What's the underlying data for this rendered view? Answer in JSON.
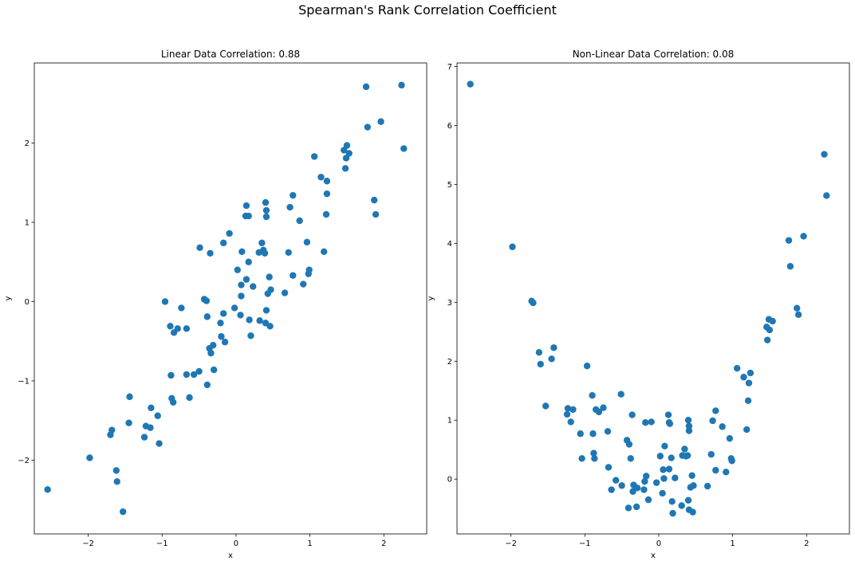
{
  "figure": {
    "suptitle": "Spearman's Rank Correlation Coefficient"
  },
  "chart_data": [
    {
      "type": "scatter",
      "title": "Linear Data Correlation: 0.88",
      "xlabel": "x",
      "ylabel": "y",
      "xlim": [
        -2.73,
        2.58
      ],
      "ylim": [
        -2.93,
        3.01
      ],
      "xticks": [
        -2,
        -1,
        0,
        1,
        2
      ],
      "yticks": [
        -2,
        -1,
        0,
        1,
        2
      ],
      "grid": false,
      "color": "#1f77b4",
      "points": [
        {
          "x": -2.55,
          "y": -2.37
        },
        {
          "x": -1.98,
          "y": -1.97
        },
        {
          "x": -1.7,
          "y": -1.68
        },
        {
          "x": -1.68,
          "y": -1.62
        },
        {
          "x": -1.62,
          "y": -2.13
        },
        {
          "x": -1.61,
          "y": -2.27
        },
        {
          "x": -1.53,
          "y": -2.65
        },
        {
          "x": -1.44,
          "y": -1.2
        },
        {
          "x": -1.45,
          "y": -1.53
        },
        {
          "x": -1.24,
          "y": -1.71
        },
        {
          "x": -1.22,
          "y": -1.57
        },
        {
          "x": -1.16,
          "y": -1.59
        },
        {
          "x": -1.15,
          "y": -1.34
        },
        {
          "x": -1.06,
          "y": -1.44
        },
        {
          "x": -1.04,
          "y": -1.79
        },
        {
          "x": -0.96,
          "y": 0.0
        },
        {
          "x": -0.89,
          "y": -0.31
        },
        {
          "x": -0.88,
          "y": -0.93
        },
        {
          "x": -0.87,
          "y": -1.22
        },
        {
          "x": -0.85,
          "y": -1.27
        },
        {
          "x": -0.84,
          "y": -0.39
        },
        {
          "x": -0.79,
          "y": -0.34
        },
        {
          "x": -0.74,
          "y": -0.08
        },
        {
          "x": -0.67,
          "y": -0.34
        },
        {
          "x": -0.67,
          "y": -0.92
        },
        {
          "x": -0.63,
          "y": -1.21
        },
        {
          "x": -0.57,
          "y": -0.92
        },
        {
          "x": -0.5,
          "y": -0.88
        },
        {
          "x": -0.49,
          "y": 0.68
        },
        {
          "x": -0.43,
          "y": 0.03
        },
        {
          "x": -0.4,
          "y": 0.01
        },
        {
          "x": -0.39,
          "y": -0.19
        },
        {
          "x": -0.39,
          "y": -1.05
        },
        {
          "x": -0.36,
          "y": -0.59
        },
        {
          "x": -0.35,
          "y": 0.61
        },
        {
          "x": -0.34,
          "y": -0.65
        },
        {
          "x": -0.31,
          "y": -0.55
        },
        {
          "x": -0.3,
          "y": -0.86
        },
        {
          "x": -0.21,
          "y": -0.27
        },
        {
          "x": -0.2,
          "y": -0.44
        },
        {
          "x": -0.17,
          "y": -0.15
        },
        {
          "x": -0.17,
          "y": 0.74
        },
        {
          "x": -0.15,
          "y": -0.51
        },
        {
          "x": -0.09,
          "y": 0.86
        },
        {
          "x": -0.02,
          "y": -0.08
        },
        {
          "x": 0.02,
          "y": 0.4
        },
        {
          "x": 0.06,
          "y": -0.17
        },
        {
          "x": 0.07,
          "y": 0.21
        },
        {
          "x": 0.07,
          "y": 0.07
        },
        {
          "x": 0.08,
          "y": 0.63
        },
        {
          "x": 0.13,
          "y": 1.08
        },
        {
          "x": 0.14,
          "y": 1.21
        },
        {
          "x": 0.14,
          "y": 0.28
        },
        {
          "x": 0.17,
          "y": 1.08
        },
        {
          "x": 0.17,
          "y": 0.5
        },
        {
          "x": 0.18,
          "y": -0.23
        },
        {
          "x": 0.2,
          "y": -0.43
        },
        {
          "x": 0.23,
          "y": 0.19
        },
        {
          "x": 0.31,
          "y": 0.62
        },
        {
          "x": 0.32,
          "y": -0.24
        },
        {
          "x": 0.35,
          "y": 0.74
        },
        {
          "x": 0.37,
          "y": 0.65
        },
        {
          "x": 0.39,
          "y": 0.61
        },
        {
          "x": 0.4,
          "y": 1.25
        },
        {
          "x": 0.41,
          "y": 1.15
        },
        {
          "x": 0.41,
          "y": 1.07
        },
        {
          "x": 0.4,
          "y": -0.27
        },
        {
          "x": 0.41,
          "y": -0.11
        },
        {
          "x": 0.43,
          "y": 0.1
        },
        {
          "x": 0.45,
          "y": 0.31
        },
        {
          "x": 0.46,
          "y": -0.31
        },
        {
          "x": 0.47,
          "y": 0.15
        },
        {
          "x": 0.66,
          "y": 0.11
        },
        {
          "x": 0.71,
          "y": 0.62
        },
        {
          "x": 0.73,
          "y": 1.19
        },
        {
          "x": 0.77,
          "y": 1.34
        },
        {
          "x": 0.77,
          "y": 0.33
        },
        {
          "x": 0.86,
          "y": 1.02
        },
        {
          "x": 0.91,
          "y": 0.22
        },
        {
          "x": 0.96,
          "y": 0.75
        },
        {
          "x": 0.98,
          "y": 0.35
        },
        {
          "x": 0.99,
          "y": 0.4
        },
        {
          "x": 1.06,
          "y": 1.83
        },
        {
          "x": 1.15,
          "y": 1.57
        },
        {
          "x": 1.19,
          "y": 0.63
        },
        {
          "x": 1.22,
          "y": 1.1
        },
        {
          "x": 1.23,
          "y": 1.52
        },
        {
          "x": 1.23,
          "y": 1.36
        },
        {
          "x": 1.46,
          "y": 1.91
        },
        {
          "x": 1.48,
          "y": 1.68
        },
        {
          "x": 1.49,
          "y": 1.81
        },
        {
          "x": 1.5,
          "y": 1.97
        },
        {
          "x": 1.53,
          "y": 1.87
        },
        {
          "x": 1.76,
          "y": 2.71
        },
        {
          "x": 1.78,
          "y": 2.2
        },
        {
          "x": 1.87,
          "y": 1.28
        },
        {
          "x": 1.89,
          "y": 1.1
        },
        {
          "x": 1.96,
          "y": 2.27
        },
        {
          "x": 2.24,
          "y": 2.73
        },
        {
          "x": 2.27,
          "y": 1.93
        }
      ]
    },
    {
      "type": "scatter",
      "title": "Non-Linear Data Correlation: 0.08",
      "xlabel": "x",
      "ylabel": "y",
      "xlim": [
        -2.73,
        2.58
      ],
      "ylim": [
        -0.93,
        7.06
      ],
      "xticks": [
        -2,
        -1,
        0,
        1,
        2
      ],
      "yticks": [
        0,
        1,
        2,
        3,
        4,
        5,
        6,
        7
      ],
      "grid": false,
      "color": "#1f77b4",
      "points": [
        {
          "x": -2.55,
          "y": 6.7
        },
        {
          "x": -1.98,
          "y": 3.94
        },
        {
          "x": -1.72,
          "y": 3.02
        },
        {
          "x": -1.7,
          "y": 2.99
        },
        {
          "x": -1.62,
          "y": 2.15
        },
        {
          "x": -1.6,
          "y": 1.95
        },
        {
          "x": -1.53,
          "y": 1.24
        },
        {
          "x": -1.45,
          "y": 2.04
        },
        {
          "x": -1.42,
          "y": 2.23
        },
        {
          "x": -1.24,
          "y": 1.1
        },
        {
          "x": -1.23,
          "y": 1.2
        },
        {
          "x": -1.19,
          "y": 0.97
        },
        {
          "x": -1.16,
          "y": 1.18
        },
        {
          "x": -1.06,
          "y": 0.77
        },
        {
          "x": -1.04,
          "y": 0.35
        },
        {
          "x": -0.97,
          "y": 1.92
        },
        {
          "x": -0.9,
          "y": 1.42
        },
        {
          "x": -0.89,
          "y": 0.77
        },
        {
          "x": -0.88,
          "y": 0.44
        },
        {
          "x": -0.87,
          "y": 0.35
        },
        {
          "x": -0.85,
          "y": 1.18
        },
        {
          "x": -0.81,
          "y": 1.14
        },
        {
          "x": -0.75,
          "y": 1.21
        },
        {
          "x": -0.69,
          "y": 0.81
        },
        {
          "x": -0.68,
          "y": 0.2
        },
        {
          "x": -0.64,
          "y": -0.18
        },
        {
          "x": -0.58,
          "y": -0.02
        },
        {
          "x": -0.51,
          "y": 1.44
        },
        {
          "x": -0.5,
          "y": -0.11
        },
        {
          "x": -0.43,
          "y": 0.66
        },
        {
          "x": -0.41,
          "y": -0.49
        },
        {
          "x": -0.4,
          "y": 0.59
        },
        {
          "x": -0.38,
          "y": 0.35
        },
        {
          "x": -0.36,
          "y": 1.09
        },
        {
          "x": -0.35,
          "y": -0.21
        },
        {
          "x": -0.34,
          "y": -0.1
        },
        {
          "x": -0.3,
          "y": -0.47
        },
        {
          "x": -0.29,
          "y": -0.15
        },
        {
          "x": -0.2,
          "y": -0.18
        },
        {
          "x": -0.19,
          "y": -0.04
        },
        {
          "x": -0.18,
          "y": 0.96
        },
        {
          "x": -0.17,
          "y": 0.05
        },
        {
          "x": -0.14,
          "y": -0.35
        },
        {
          "x": -0.1,
          "y": 0.97
        },
        {
          "x": -0.03,
          "y": -0.06
        },
        {
          "x": 0.02,
          "y": 0.39
        },
        {
          "x": 0.05,
          "y": -0.24
        },
        {
          "x": 0.06,
          "y": 0.16
        },
        {
          "x": 0.07,
          "y": 0.01
        },
        {
          "x": 0.08,
          "y": 0.56
        },
        {
          "x": 0.13,
          "y": 1.09
        },
        {
          "x": 0.14,
          "y": 0.96
        },
        {
          "x": 0.14,
          "y": 0.17
        },
        {
          "x": 0.15,
          "y": 0.94
        },
        {
          "x": 0.17,
          "y": 0.36
        },
        {
          "x": 0.18,
          "y": -0.38
        },
        {
          "x": 0.19,
          "y": -0.58
        },
        {
          "x": 0.22,
          "y": 0.02
        },
        {
          "x": 0.31,
          "y": -0.45
        },
        {
          "x": 0.32,
          "y": 0.4
        },
        {
          "x": 0.35,
          "y": 0.51
        },
        {
          "x": 0.37,
          "y": 0.39
        },
        {
          "x": 0.39,
          "y": 0.4
        },
        {
          "x": 0.4,
          "y": 1.0
        },
        {
          "x": 0.41,
          "y": 0.82
        },
        {
          "x": 0.41,
          "y": 0.9
        },
        {
          "x": 0.4,
          "y": -0.36
        },
        {
          "x": 0.41,
          "y": -0.52
        },
        {
          "x": 0.43,
          "y": -0.14
        },
        {
          "x": 0.45,
          "y": 0.06
        },
        {
          "x": 0.46,
          "y": -0.56
        },
        {
          "x": 0.47,
          "y": -0.11
        },
        {
          "x": 0.66,
          "y": -0.12
        },
        {
          "x": 0.71,
          "y": 0.42
        },
        {
          "x": 0.73,
          "y": 0.99
        },
        {
          "x": 0.77,
          "y": 1.16
        },
        {
          "x": 0.77,
          "y": 0.15
        },
        {
          "x": 0.86,
          "y": 0.89
        },
        {
          "x": 0.91,
          "y": 0.12
        },
        {
          "x": 0.96,
          "y": 0.69
        },
        {
          "x": 0.98,
          "y": 0.35
        },
        {
          "x": 0.99,
          "y": 0.31
        },
        {
          "x": 1.06,
          "y": 1.88
        },
        {
          "x": 1.15,
          "y": 1.73
        },
        {
          "x": 1.19,
          "y": 0.84
        },
        {
          "x": 1.21,
          "y": 1.33
        },
        {
          "x": 1.22,
          "y": 1.63
        },
        {
          "x": 1.24,
          "y": 1.8
        },
        {
          "x": 1.46,
          "y": 2.58
        },
        {
          "x": 1.47,
          "y": 2.36
        },
        {
          "x": 1.49,
          "y": 2.71
        },
        {
          "x": 1.5,
          "y": 2.53
        },
        {
          "x": 1.54,
          "y": 2.68
        },
        {
          "x": 1.76,
          "y": 4.05
        },
        {
          "x": 1.78,
          "y": 3.61
        },
        {
          "x": 1.87,
          "y": 2.9
        },
        {
          "x": 1.89,
          "y": 2.79
        },
        {
          "x": 1.96,
          "y": 4.12
        },
        {
          "x": 2.24,
          "y": 5.51
        },
        {
          "x": 2.27,
          "y": 4.81
        }
      ]
    }
  ]
}
